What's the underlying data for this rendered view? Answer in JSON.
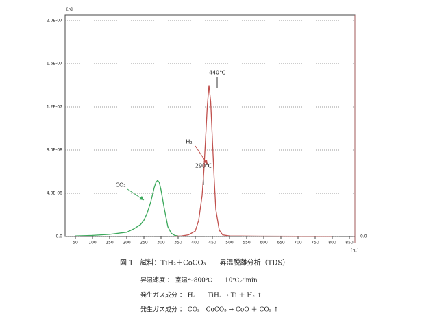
{
  "chart_data": {
    "type": "line",
    "y_label": "[A]",
    "x_label": "[℃]",
    "xlim": [
      20,
      866
    ],
    "ylim": [
      0,
      2e-07
    ],
    "xticks": [
      50,
      100,
      150,
      200,
      250,
      300,
      350,
      400,
      450,
      500,
      550,
      600,
      650,
      700,
      750,
      800,
      850
    ],
    "yticks": [
      {
        "value": 0,
        "label": "0.0"
      },
      {
        "value": 4e-08,
        "label": "4.0E-08"
      },
      {
        "value": 8e-08,
        "label": "8.0E-08"
      },
      {
        "value": 1.2e-07,
        "label": "1.2E-07"
      },
      {
        "value": 1.6e-07,
        "label": "1.6E-07"
      },
      {
        "value": 2e-07,
        "label": "2.0E-07"
      }
    ],
    "grid": true,
    "series": [
      {
        "name": "CO₂",
        "color": "#3aa85a",
        "x": [
          50,
          100,
          150,
          200,
          220,
          240,
          250,
          260,
          270,
          280,
          285,
          290,
          295,
          300,
          310,
          320,
          330,
          340,
          350
        ],
        "values": [
          5e-10,
          1e-09,
          2e-09,
          4e-09,
          7e-09,
          1.1e-08,
          1.5e-08,
          2.2e-08,
          3.2e-08,
          4.5e-08,
          5e-08,
          5.2e-08,
          5e-08,
          4.3e-08,
          2.5e-08,
          9e-09,
          3e-09,
          1e-09,
          5e-10
        ]
      },
      {
        "name": "H₂",
        "color": "#c0504d",
        "x": [
          340,
          360,
          380,
          400,
          410,
          420,
          425,
          430,
          435,
          440,
          445,
          450,
          455,
          460,
          470,
          480,
          500,
          600,
          700,
          800
        ],
        "values": [
          2e-10,
          5e-10,
          1.5e-09,
          5e-09,
          1.5e-08,
          3.8e-08,
          6e-08,
          9e-08,
          1.2e-07,
          1.4e-07,
          1.25e-07,
          9e-08,
          5.5e-08,
          2.5e-08,
          6e-09,
          1.5e-09,
          5e-10,
          3e-10,
          2e-10,
          2e-10
        ]
      }
    ],
    "annotations": [
      "440℃",
      "290℃",
      "H₂",
      "CO₂",
      "0.0"
    ]
  },
  "caption": [
    "図 1　試料：TiH₂＋CoCO₃　　昇温脱離分析（TDS）",
    "昇温速度 ： 室温～800℃　　10℃／min",
    "発生ガス成分 ： H₂　　TiH₂ → Ti ＋ H₂ ↑",
    "発生ガス成分 ： CO₂　CoCO₃ → CoO ＋ CO₂ ↑"
  ]
}
